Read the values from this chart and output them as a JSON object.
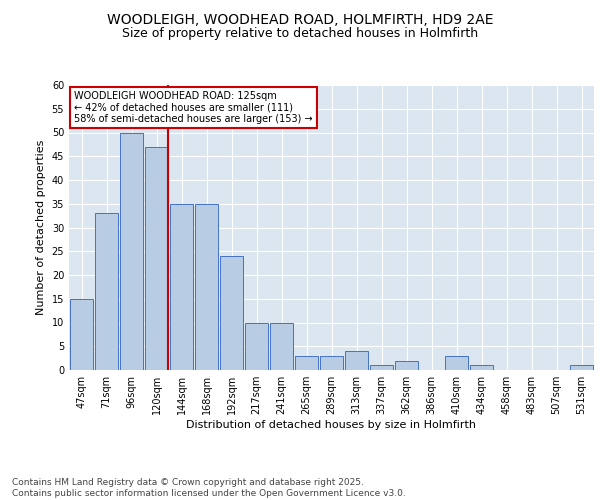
{
  "title_line1": "WOODLEIGH, WOODHEAD ROAD, HOLMFIRTH, HD9 2AE",
  "title_line2": "Size of property relative to detached houses in Holmfirth",
  "xlabel": "Distribution of detached houses by size in Holmfirth",
  "ylabel": "Number of detached properties",
  "categories": [
    "47sqm",
    "71sqm",
    "96sqm",
    "120sqm",
    "144sqm",
    "168sqm",
    "192sqm",
    "217sqm",
    "241sqm",
    "265sqm",
    "289sqm",
    "313sqm",
    "337sqm",
    "362sqm",
    "386sqm",
    "410sqm",
    "434sqm",
    "458sqm",
    "483sqm",
    "507sqm",
    "531sqm"
  ],
  "values": [
    15,
    33,
    50,
    47,
    35,
    35,
    24,
    10,
    10,
    3,
    3,
    4,
    1,
    2,
    0,
    3,
    1,
    0,
    0,
    0,
    1
  ],
  "bar_color": "#b8cce4",
  "bar_edge_color": "#4472c4",
  "red_line_x": 3.45,
  "ylim": [
    0,
    60
  ],
  "yticks": [
    0,
    5,
    10,
    15,
    20,
    25,
    30,
    35,
    40,
    45,
    50,
    55,
    60
  ],
  "annotation_text": "WOODLEIGH WOODHEAD ROAD: 125sqm\n← 42% of detached houses are smaller (111)\n58% of semi-detached houses are larger (153) →",
  "annotation_box_color": "#ffffff",
  "annotation_box_edge": "#cc0000",
  "footer_text": "Contains HM Land Registry data © Crown copyright and database right 2025.\nContains public sector information licensed under the Open Government Licence v3.0.",
  "fig_bg_color": "#ffffff",
  "plot_bg_color": "#dce6f1",
  "grid_color": "#ffffff",
  "title_fontsize": 10,
  "subtitle_fontsize": 9,
  "axis_label_fontsize": 8,
  "tick_fontsize": 7,
  "annotation_fontsize": 7,
  "footer_fontsize": 6.5
}
